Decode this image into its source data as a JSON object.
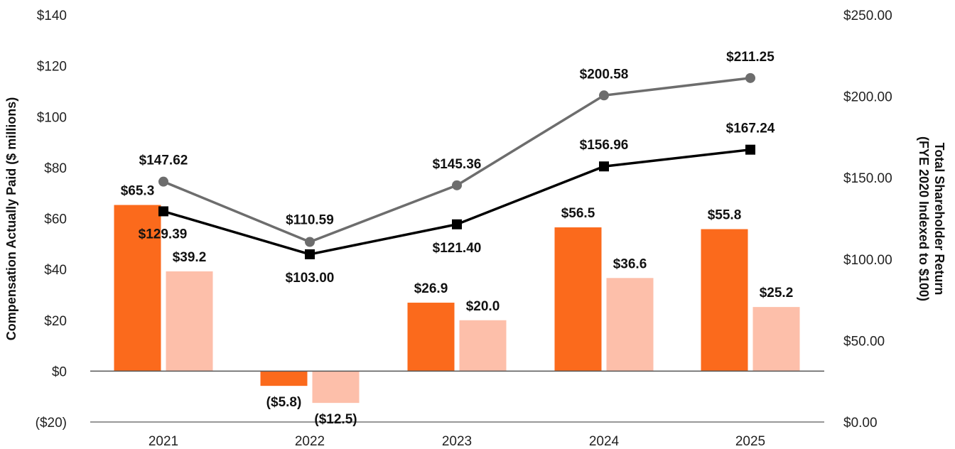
{
  "chart_data": {
    "type": "bar",
    "categories": [
      "2021",
      "2022",
      "2023",
      "2024",
      "2025"
    ],
    "series": [
      {
        "name": "Compensation Actually Paid - Series 1",
        "axis": "left",
        "kind": "bar",
        "color": "#fb6a1c",
        "values": [
          65.3,
          -5.8,
          26.9,
          56.5,
          55.8
        ],
        "labels": [
          "$65.3",
          "($5.8)",
          "$26.9",
          "$56.5",
          "$55.8"
        ]
      },
      {
        "name": "Compensation Actually Paid - Series 2",
        "axis": "left",
        "kind": "bar",
        "color": "#fdbfaa",
        "values": [
          39.2,
          -12.5,
          20.0,
          36.6,
          25.2
        ],
        "labels": [
          "$39.2",
          "($12.5)",
          "$20.0",
          "$36.6",
          "$25.2"
        ]
      },
      {
        "name": "Total Shareholder Return - Series 1",
        "axis": "right",
        "kind": "line",
        "marker": "circle",
        "color": "#6d6d6d",
        "values": [
          147.62,
          110.59,
          145.36,
          200.58,
          211.25
        ],
        "labels": [
          "$147.62",
          "$110.59",
          "$145.36",
          "$200.58",
          "$211.25"
        ]
      },
      {
        "name": "Total Shareholder Return - Series 2",
        "axis": "right",
        "kind": "line",
        "marker": "square",
        "color": "#000000",
        "values": [
          129.39,
          103.0,
          121.4,
          156.96,
          167.24
        ],
        "labels": [
          "$129.39",
          "$103.00",
          "$121.40",
          "$156.96",
          "$167.24"
        ]
      }
    ],
    "ylabel": "Compensation Actually Paid ($ millions)",
    "y2label_line1": "Total Shareholder Return",
    "y2label_line2": "(FYE 2020 Indexed to $100)",
    "ylim": [
      -20,
      140
    ],
    "yticks": [
      -20,
      0,
      20,
      40,
      60,
      80,
      100,
      120,
      140
    ],
    "ytick_labels": [
      "($20)",
      "$0",
      "$20",
      "$40",
      "$60",
      "$80",
      "$100",
      "$120",
      "$140"
    ],
    "y2lim": [
      0,
      250
    ],
    "y2ticks": [
      0,
      50,
      100,
      150,
      200,
      250
    ],
    "y2tick_labels": [
      "$0.00",
      "$50.00",
      "$100.00",
      "$150.00",
      "$200.00",
      "$250.00"
    ],
    "grid": false
  }
}
